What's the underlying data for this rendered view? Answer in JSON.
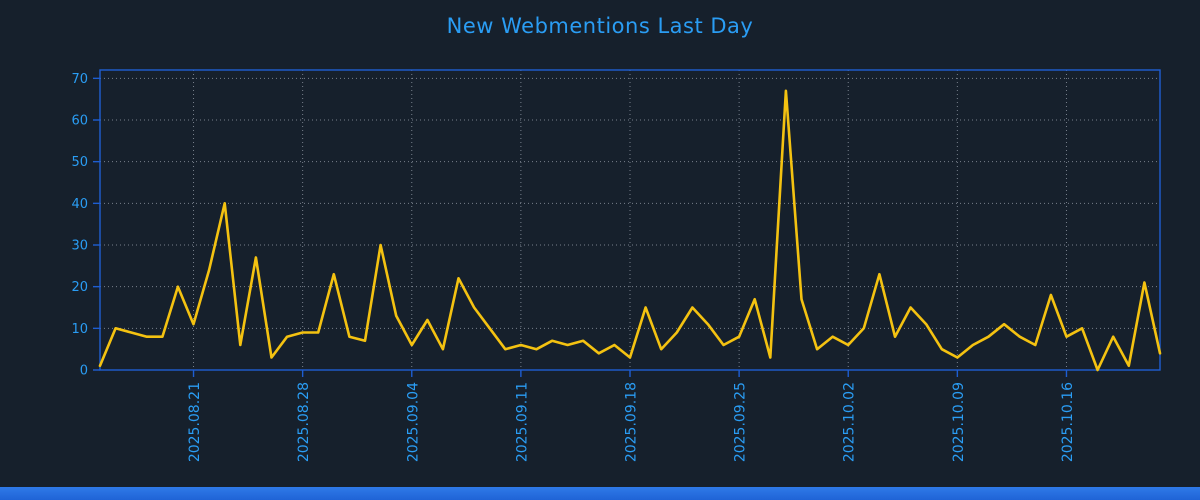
{
  "page": {
    "background": "#16202c",
    "accent_bar_color": "#1f63d6"
  },
  "chart_data": {
    "type": "line",
    "title": "New Webmentions Last Day",
    "title_color": "#2a9df4",
    "label_color": "#2a9df4",
    "axis_color": "#1e5ed2",
    "grid_color": "#aeb6c2",
    "line_color": "#f4c211",
    "grid": "dotted",
    "legend": "none",
    "ylim": [
      0,
      72
    ],
    "y_ticks": [
      0,
      10,
      20,
      30,
      40,
      50,
      60,
      70
    ],
    "x_ticks": [
      {
        "label": "2025.08.21",
        "index": 6
      },
      {
        "label": "2025.08.28",
        "index": 13
      },
      {
        "label": "2025.09.04",
        "index": 20
      },
      {
        "label": "2025.09.11",
        "index": 27
      },
      {
        "label": "2025.09.18",
        "index": 34
      },
      {
        "label": "2025.09.25",
        "index": 41
      },
      {
        "label": "2025.10.02",
        "index": 48
      },
      {
        "label": "2025.10.09",
        "index": 55
      },
      {
        "label": "2025.10.16",
        "index": 62
      }
    ],
    "values": [
      1,
      10,
      9,
      8,
      8,
      20,
      11,
      24,
      40,
      6,
      27,
      3,
      8,
      9,
      9,
      23,
      8,
      7,
      30,
      13,
      6,
      12,
      5,
      22,
      15,
      10,
      5,
      6,
      5,
      7,
      6,
      7,
      4,
      6,
      3,
      15,
      5,
      9,
      15,
      11,
      6,
      8,
      17,
      3,
      67,
      17,
      5,
      8,
      6,
      10,
      23,
      8,
      15,
      11,
      5,
      3,
      6,
      8,
      11,
      8,
      6,
      18,
      8,
      10,
      0,
      8,
      1,
      21,
      4
    ]
  }
}
